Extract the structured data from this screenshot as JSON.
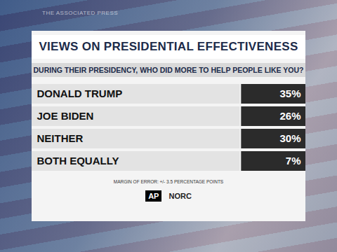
{
  "chart_data": {
    "type": "bar",
    "orientation": "horizontal",
    "title": "VIEWS ON PRESIDENTIAL EFFECTIVENESS",
    "subtitle": "DURING THEIR PRESIDENCY, WHO DID MORE TO HELP PEOPLE LIKE YOU?",
    "categories": [
      "DONALD TRUMP",
      "JOE BIDEN",
      "NEITHER",
      "BOTH EQUALLY"
    ],
    "values": [
      35,
      26,
      30,
      7
    ],
    "value_labels": [
      "35%",
      "26%",
      "30%",
      "7%"
    ],
    "data_labels": true,
    "color": "#2b2b2b",
    "note": "MARGIN OF ERROR: +/- 3.5 PERCENTAGE POINTS",
    "logos": [
      "AP",
      "NORC"
    ],
    "watermark": "THE ASSOCIATED PRESS"
  }
}
